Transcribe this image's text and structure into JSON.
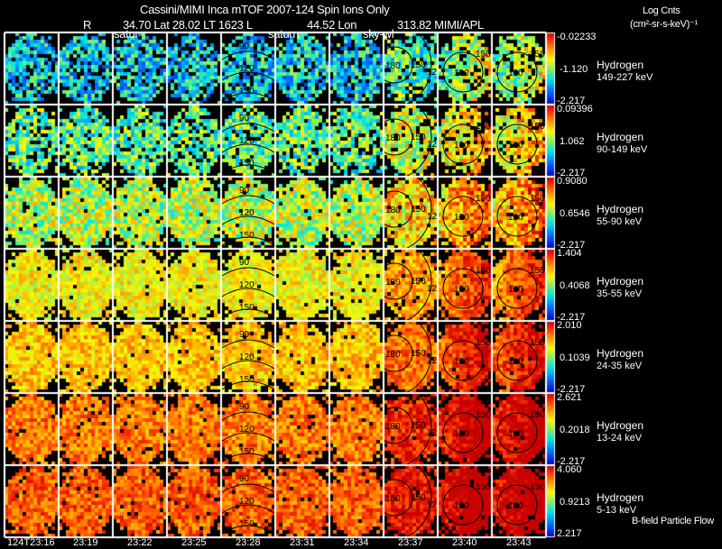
{
  "header": {
    "title": "Cassini/MIMI Inca mTOF  2007-124   Spin   Ions Only",
    "r_label": "R",
    "position_line": "34.70 Lat 28.02 LT 1623 L",
    "lon_label": "44.52 Lon",
    "lon_value": "313.82  MIMI/APL",
    "units_title": "Log Cnts",
    "units": "(cm²-sr-s-keV)⁻¹"
  },
  "overlay_labels": {
    "satur": "satur",
    "saturn": "saturn",
    "sky": "sky-wl",
    "flow": "B-field Particle Flow"
  },
  "colors": {
    "background": "#000000",
    "grid": "#ffffff",
    "contour": "#000000"
  },
  "chart_data": {
    "type": "heatmap",
    "title": "Cassini/MIMI Inca mTOF 2007-124 Spin Ions Only",
    "colorbar_label": "Log Cnts (cm2-sr-s-keV)^-1",
    "time_labels": [
      "124T23:16",
      "23:19",
      "23:22",
      "23:25",
      "23:28",
      "23:31",
      "23:34",
      "23:37",
      "23:40",
      "23:43"
    ],
    "contour_labels": [
      "90",
      "120",
      "150",
      "180"
    ],
    "rows": [
      {
        "species": "Hydrogen",
        "energy": "149-227 keV",
        "cbar_max": "-0.02233",
        "cbar_mid": "-1.120",
        "cbar_min": "-2.217",
        "mean_level": 0.32
      },
      {
        "species": "Hydrogen",
        "energy": "90-149 keV",
        "cbar_max": "0.09396",
        "cbar_mid": "1.062",
        "cbar_min": "-2.217",
        "mean_level": 0.45
      },
      {
        "species": "Hydrogen",
        "energy": "55-90 keV",
        "cbar_max": "0.9080",
        "cbar_mid": "0.6546",
        "cbar_min": "-2.217",
        "mean_level": 0.55
      },
      {
        "species": "Hydrogen",
        "energy": "35-55 keV",
        "cbar_max": "1.404",
        "cbar_mid": "0.4068",
        "cbar_min": "-2.217",
        "mean_level": 0.63
      },
      {
        "species": "Hydrogen",
        "energy": "24-35 keV",
        "cbar_max": "2.010",
        "cbar_mid": "0.1039",
        "cbar_min": "-2.217",
        "mean_level": 0.7
      },
      {
        "species": "Hydrogen",
        "energy": "13-24 keV",
        "cbar_max": "2.621",
        "cbar_mid": "0.2018",
        "cbar_min": "-2.217",
        "mean_level": 0.8
      },
      {
        "species": "Hydrogen",
        "energy": "5-13 keV",
        "cbar_max": "4.060",
        "cbar_mid": "0.9213",
        "cbar_min": "2.217",
        "mean_level": 0.84
      }
    ]
  }
}
